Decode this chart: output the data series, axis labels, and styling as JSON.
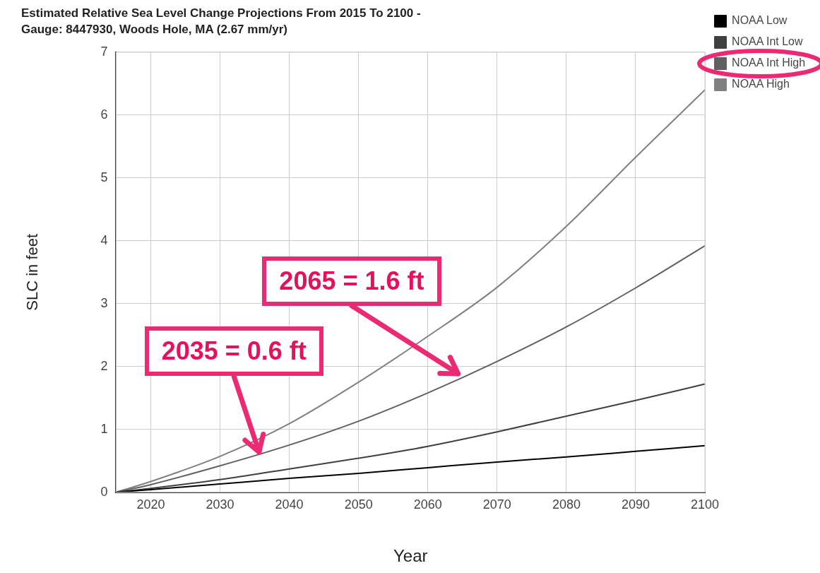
{
  "chart_data": {
    "type": "line",
    "title": "Estimated Relative Sea Level Change Projections From 2015 To 2100 - Gauge: 8447930, Woods Hole, MA (2.67 mm/yr)",
    "xlabel": "Year",
    "ylabel": "SLC in feet",
    "x": [
      2015,
      2020,
      2030,
      2040,
      2050,
      2060,
      2070,
      2080,
      2090,
      2100
    ],
    "series": [
      {
        "name": "NOAA Low",
        "color": "#000000",
        "values": [
          0,
          0.04,
          0.13,
          0.22,
          0.3,
          0.39,
          0.48,
          0.56,
          0.65,
          0.74
        ]
      },
      {
        "name": "NOAA Int Low",
        "color": "#404040",
        "values": [
          0,
          0.06,
          0.2,
          0.37,
          0.54,
          0.73,
          0.96,
          1.21,
          1.46,
          1.72
        ]
      },
      {
        "name": "NOAA Int High",
        "color": "#606060",
        "values": [
          0,
          0.12,
          0.42,
          0.75,
          1.13,
          1.58,
          2.08,
          2.63,
          3.25,
          3.92
        ]
      },
      {
        "name": "NOAA High",
        "color": "#808080",
        "values": [
          0,
          0.17,
          0.57,
          1.09,
          1.75,
          2.48,
          3.26,
          4.23,
          5.33,
          6.4
        ]
      }
    ],
    "xlim": [
      2015,
      2100
    ],
    "xticks": [
      2020,
      2030,
      2040,
      2050,
      2060,
      2070,
      2080,
      2090,
      2100
    ],
    "ylim": [
      0,
      7
    ],
    "yticks": [
      0,
      1,
      2,
      3,
      4,
      5,
      6,
      7
    ],
    "grid": true,
    "legend": "top right",
    "marker": "none",
    "line_style": "solid",
    "annotations": [
      "2035 = 0.6 ft",
      "2065 = 1.6 ft"
    ]
  }
}
